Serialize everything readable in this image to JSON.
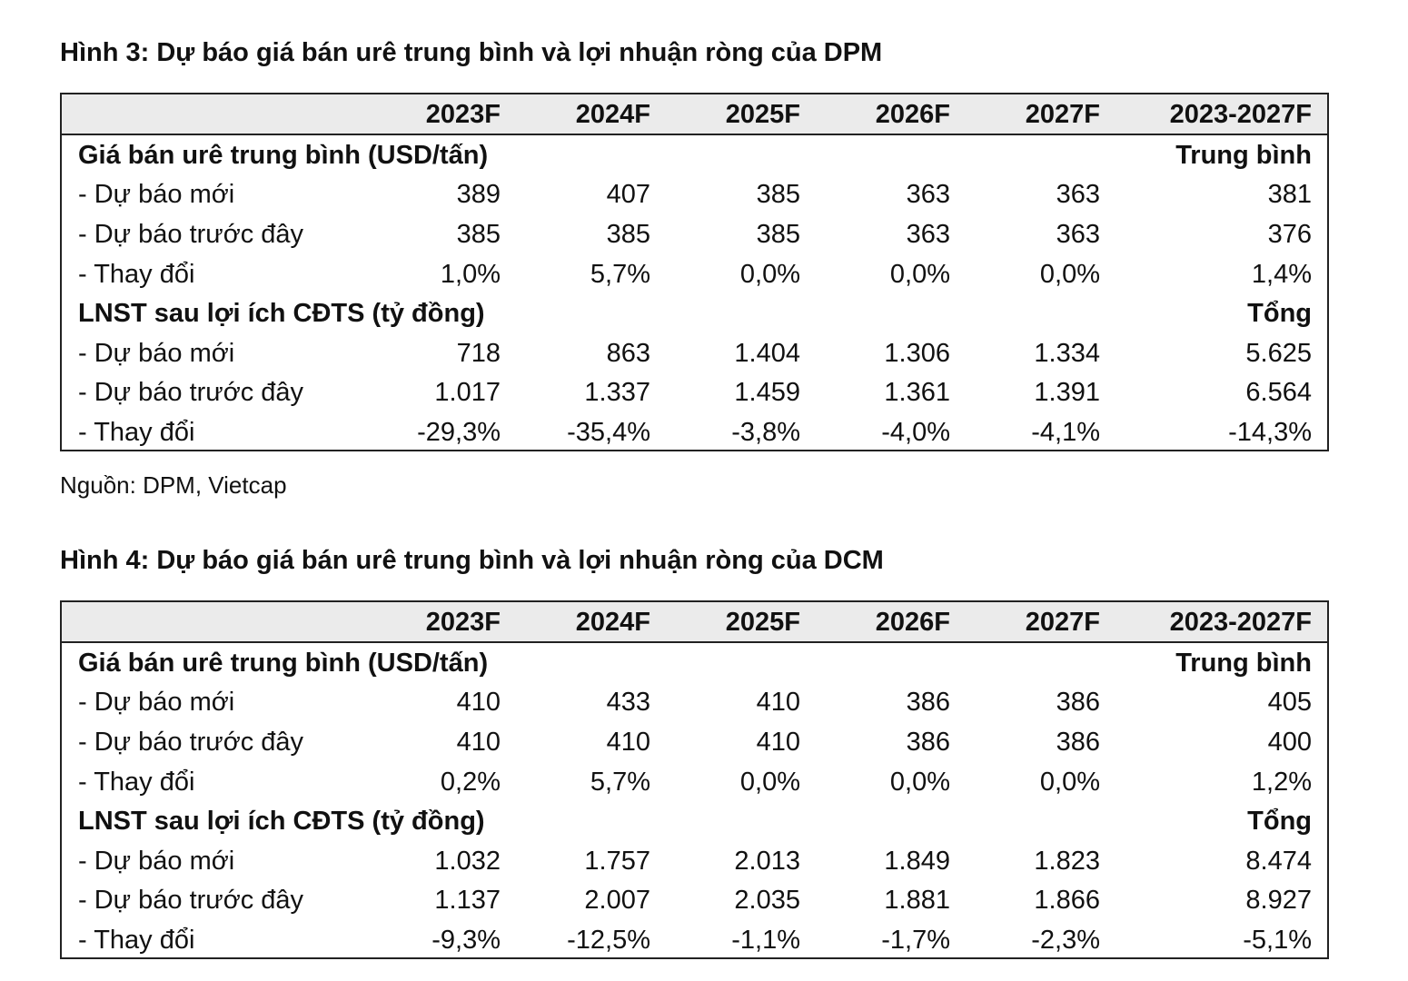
{
  "figures": [
    {
      "title": "Hình 3: Dự báo giá bán urê trung bình và lợi nhuận ròng của DPM",
      "header": [
        "2023F",
        "2024F",
        "2025F",
        "2026F",
        "2027F",
        "2023-2027F"
      ],
      "rows": [
        {
          "label": "Giá bán urê trung bình (USD/tấn)",
          "note": "Trung bình"
        },
        {
          "label": "- Dự báo mới",
          "values": [
            "389",
            "407",
            "385",
            "363",
            "363",
            "381"
          ]
        },
        {
          "label": "- Dự báo trước đây",
          "values": [
            "385",
            "385",
            "385",
            "363",
            "363",
            "376"
          ]
        },
        {
          "label": "- Thay đổi",
          "values": [
            "1,0%",
            "5,7%",
            "0,0%",
            "0,0%",
            "0,0%",
            "1,4%"
          ]
        },
        {
          "label": "LNST sau lợi ích CĐTS (tỷ đồng)",
          "note": "Tổng"
        },
        {
          "label": "- Dự báo mới",
          "values": [
            "718",
            "863",
            "1.404",
            "1.306",
            "1.334",
            "5.625"
          ]
        },
        {
          "label": "- Dự báo trước đây",
          "values": [
            "1.017",
            "1.337",
            "1.459",
            "1.361",
            "1.391",
            "6.564"
          ]
        },
        {
          "label": "- Thay đổi",
          "values": [
            "-29,3%",
            "-35,4%",
            "-3,8%",
            "-4,0%",
            "-4,1%",
            "-14,3%"
          ]
        }
      ],
      "source": "Nguồn: DPM, Vietcap"
    },
    {
      "title": "Hình 4: Dự báo giá bán urê trung bình và lợi nhuận ròng của DCM",
      "header": [
        "2023F",
        "2024F",
        "2025F",
        "2026F",
        "2027F",
        "2023-2027F"
      ],
      "rows": [
        {
          "label": "Giá bán urê trung bình (USD/tấn)",
          "note": "Trung bình"
        },
        {
          "label": "- Dự báo mới",
          "values": [
            "410",
            "433",
            "410",
            "386",
            "386",
            "405"
          ]
        },
        {
          "label": "- Dự báo trước đây",
          "values": [
            "410",
            "410",
            "410",
            "386",
            "386",
            "400"
          ]
        },
        {
          "label": "- Thay đổi",
          "values": [
            "0,2%",
            "5,7%",
            "0,0%",
            "0,0%",
            "0,0%",
            "1,2%"
          ]
        },
        {
          "label": "LNST sau lợi ích CĐTS (tỷ đồng)",
          "note": "Tổng"
        },
        {
          "label": "- Dự báo mới",
          "values": [
            "1.032",
            "1.757",
            "2.013",
            "1.849",
            "1.823",
            "8.474"
          ]
        },
        {
          "label": "- Dự báo trước đây",
          "values": [
            "1.137",
            "2.007",
            "2.035",
            "1.881",
            "1.866",
            "8.927"
          ]
        },
        {
          "label": "- Thay đổi",
          "values": [
            "-9,3%",
            "-12,5%",
            "-1,1%",
            "-1,7%",
            "-2,3%",
            "-5,1%"
          ]
        }
      ]
    }
  ]
}
